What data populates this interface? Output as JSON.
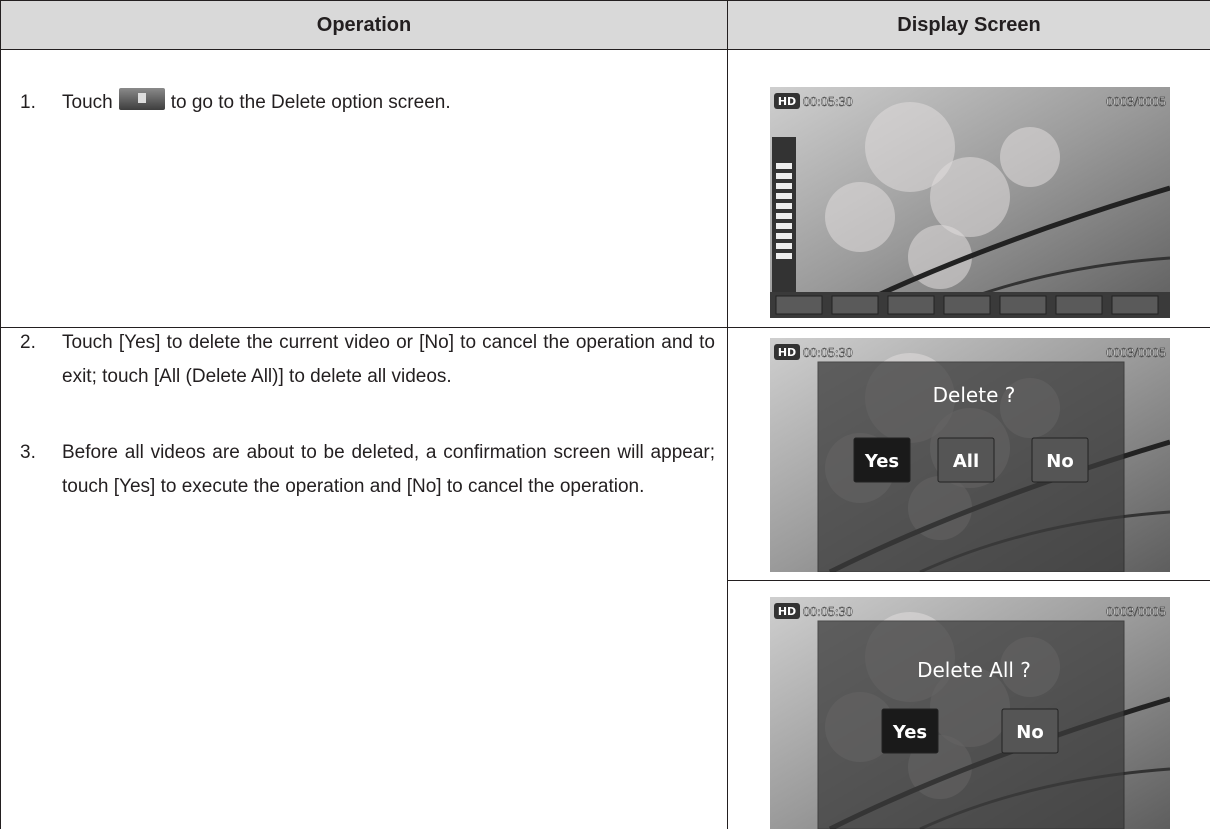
{
  "table": {
    "headers": [
      "Operation",
      "Display Screen"
    ],
    "steps": [
      {
        "number": "1.",
        "text_before": "Touch",
        "text_after": "to go to the Delete option screen."
      },
      {
        "number": "2.",
        "text": "Touch [Yes] to delete the current video or [No] to cancel the operation and to exit; touch [All (Delete All)] to delete all videos."
      },
      {
        "number": "3.",
        "text": "Before all videos are about to be deleted, a confirmation screen will appear; touch [Yes] to execute the operation and [No] to cancel the operation."
      }
    ],
    "screens": [
      {
        "badge": "HD",
        "time": "00:05:30",
        "counter": "0003/0005"
      },
      {
        "badge": "HD",
        "time": "00:05:30",
        "counter": "0003/0005",
        "prompt": "Delete ?",
        "buttons": [
          "Yes",
          "All",
          "No"
        ]
      },
      {
        "badge": "HD",
        "time": "00:05:30",
        "counter": "0003/0005",
        "prompt": "Delete All ?",
        "buttons": [
          "Yes",
          "No"
        ]
      }
    ]
  }
}
